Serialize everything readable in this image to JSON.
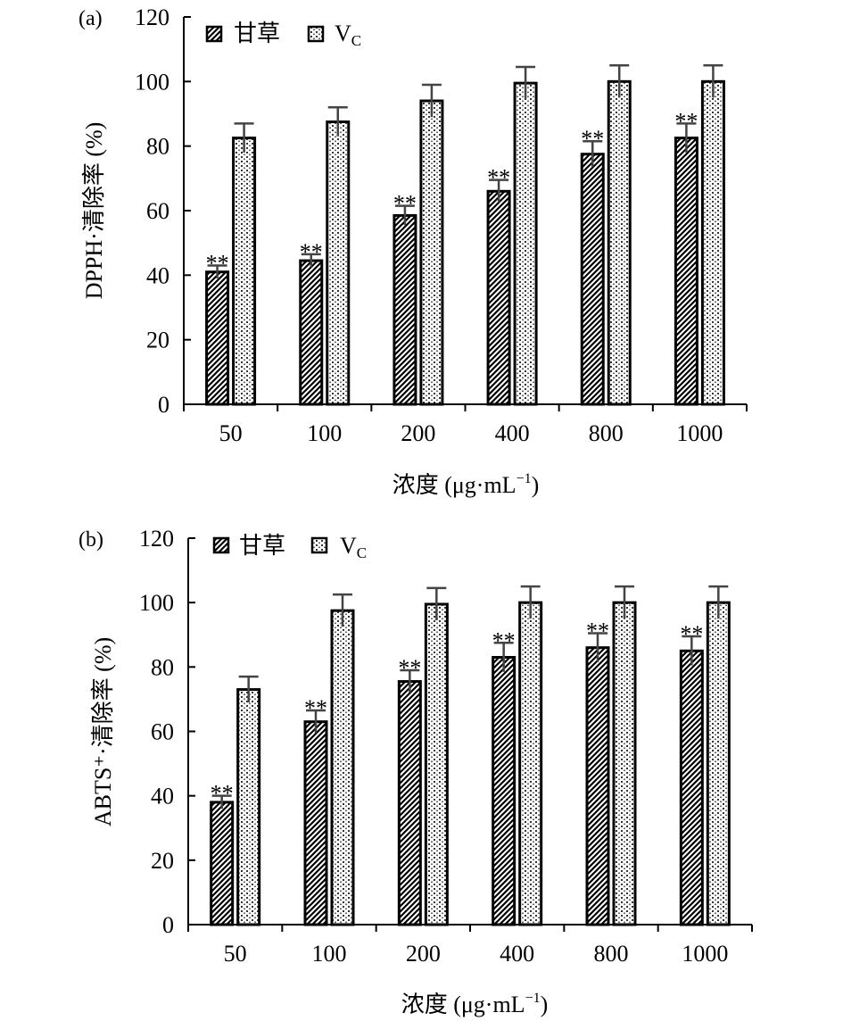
{
  "chart_data": [
    {
      "type": "bar",
      "panel_label": "(a)",
      "categories": [
        "50",
        "100",
        "200",
        "400",
        "800",
        "1000"
      ],
      "xlabel": "浓度 (μg·mL",
      "xlabel_sup": "−1",
      "xlabel_end": ")",
      "ylabel": "DPPH·清除率 (%)",
      "ylim": [
        0,
        120
      ],
      "yticks": [
        "0",
        "20",
        "40",
        "60",
        "80",
        "100",
        "120"
      ],
      "legend_position": "top-left",
      "series": [
        {
          "name": "甘草",
          "pattern": "diagonal",
          "values": [
            41,
            44.5,
            58.5,
            66,
            77.5,
            82.5
          ],
          "errors": [
            2,
            2,
            3,
            3.5,
            4,
            4.5
          ],
          "significance": [
            "**",
            "**",
            "**",
            "**",
            "**",
            "**"
          ]
        },
        {
          "name": "V",
          "name_sub": "C",
          "pattern": "dotted",
          "values": [
            82.5,
            87.5,
            94,
            99.5,
            100,
            100
          ],
          "errors": [
            4.5,
            4.5,
            5,
            5,
            5,
            5
          ],
          "significance": [
            "",
            "",
            "",
            "",
            "",
            ""
          ]
        }
      ]
    },
    {
      "type": "bar",
      "panel_label": "(b)",
      "categories": [
        "50",
        "100",
        "200",
        "400",
        "800",
        "1000"
      ],
      "xlabel": "浓度 (μg·mL",
      "xlabel_sup": "−1",
      "xlabel_end": ")",
      "ylabel": "ABTS⁺·清除率 (%)",
      "ylim": [
        0,
        120
      ],
      "yticks": [
        "0",
        "20",
        "40",
        "60",
        "80",
        "100",
        "120"
      ],
      "legend_position": "top-left",
      "series": [
        {
          "name": "甘草",
          "pattern": "diagonal",
          "values": [
            38,
            63,
            75.5,
            83,
            86,
            85
          ],
          "errors": [
            2,
            3.5,
            3.5,
            4.5,
            4.5,
            4.5
          ],
          "significance": [
            "**",
            "**",
            "**",
            "**",
            "**",
            "**"
          ]
        },
        {
          "name": "V",
          "name_sub": "C",
          "pattern": "dotted",
          "values": [
            73,
            97.5,
            99.5,
            100,
            100,
            100
          ],
          "errors": [
            4,
            5,
            5,
            5,
            5,
            5
          ],
          "significance": [
            "",
            "",
            "",
            "",
            "",
            ""
          ]
        }
      ]
    }
  ]
}
